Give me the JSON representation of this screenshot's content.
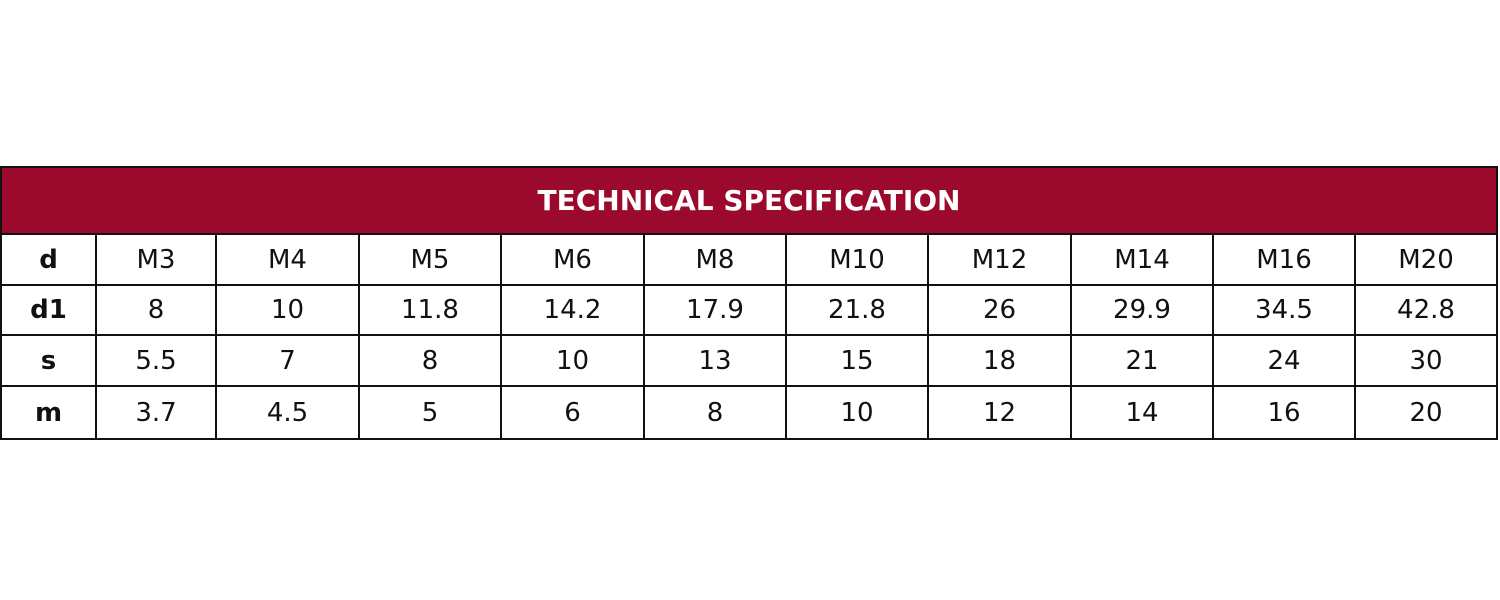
{
  "table": {
    "title": "TECHNICAL SPECIFICATION",
    "rows": [
      [
        "d",
        "M3",
        "M4",
        "M5",
        "M6",
        "M8",
        "M10",
        "M12",
        "M14",
        "M16",
        "M20"
      ],
      [
        "d1",
        "8",
        "10",
        "11.8",
        "14.2",
        "17.9",
        "21.8",
        "26",
        "29.9",
        "34.5",
        "42.8"
      ],
      [
        "s",
        "5.5",
        "7",
        "8",
        "10",
        "13",
        "15",
        "18",
        "21",
        "24",
        "30"
      ],
      [
        "m",
        "3.7",
        "4.5",
        "5",
        "6",
        "8",
        "10",
        "12",
        "14",
        "16",
        "20"
      ]
    ]
  }
}
